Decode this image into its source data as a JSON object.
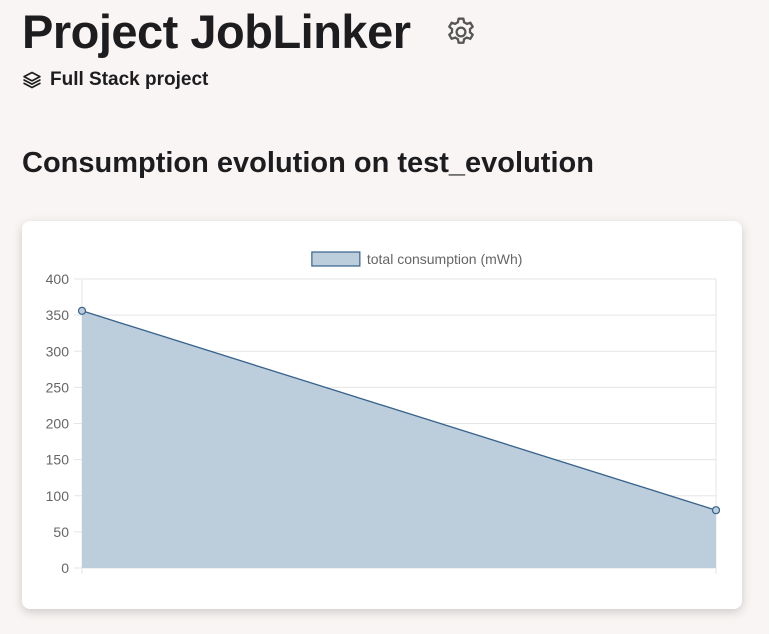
{
  "header": {
    "title": "Project JobLinker",
    "settings_icon": "gear-icon",
    "subtitle": "Full Stack project",
    "subtitle_icon": "layers-icon"
  },
  "section": {
    "title": "Consumption evolution on test_evolution"
  },
  "colors": {
    "series_line": "#36628c",
    "series_fill": "#bccddc",
    "grid": "#e5e5e5",
    "tick_text": "#666666"
  },
  "chart_data": {
    "type": "area",
    "title": "",
    "xlabel": "",
    "ylabel": "",
    "x": [
      "",
      ""
    ],
    "series": [
      {
        "name": "total consumption (mWh)",
        "values": [
          356,
          80
        ]
      }
    ],
    "ylim": [
      0,
      400
    ],
    "yticks": [
      "0",
      "50",
      "100",
      "150",
      "200",
      "250",
      "300",
      "350",
      "400"
    ],
    "grid": true,
    "legend": "top-center"
  }
}
